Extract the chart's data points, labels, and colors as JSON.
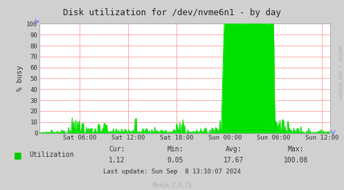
{
  "title": "Disk utilization for /dev/nvme6n1 - by day",
  "ylabel": "% busy",
  "xlabel_ticks": [
    "Sat 06:00",
    "Sat 12:00",
    "Sat 18:00",
    "Sun 00:00",
    "Sun 06:00",
    "Sun 12:00"
  ],
  "ylim": [
    0,
    100
  ],
  "yticks": [
    0,
    10,
    20,
    30,
    40,
    50,
    60,
    70,
    80,
    90,
    100
  ],
  "line_color": "#00e000",
  "fill_color": "#00e000",
  "bg_color": "#d0d0d0",
  "plot_bg_color": "#ffffff",
  "grid_color": "#ff9999",
  "border_color": "#aaaaaa",
  "legend_label": "Utilization",
  "legend_color": "#00cc00",
  "cur": "1.12",
  "min": "0.05",
  "avg": "17.67",
  "max": "100.08",
  "last_update": "Last update: Sun Sep  8 13:10:07 2024",
  "munin_version": "Munin 2.0.73",
  "rrdtool_label": "RRDTOOL / TOBI OETIKER",
  "title_color": "#222222",
  "label_color": "#333333",
  "tick_color": "#333333",
  "xlim_min": 0,
  "xlim_max": 32,
  "tick_hours": [
    6,
    12,
    18,
    24,
    30,
    36
  ],
  "seed": 42
}
